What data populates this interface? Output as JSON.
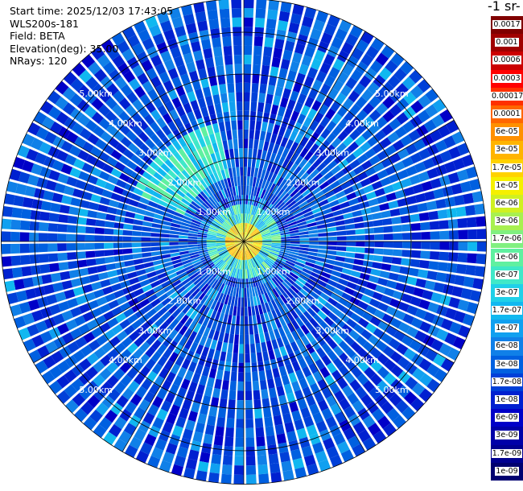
{
  "info": {
    "start_time": "Start time: 2025/12/03 17:43:05",
    "system": "WLS200s-181",
    "field": "Field: BETA",
    "elevation": "Elevation(deg): 35.00",
    "nrays": "NRays: 120"
  },
  "colorbar": {
    "units_label": "-1 sr-",
    "ticks": [
      "0.0017",
      "0.001",
      "0.0006",
      "0.0003",
      "0.00017",
      "0.0001",
      "6e-05",
      "3e-05",
      "1.7e-05",
      "1e-05",
      "6e-06",
      "3e-06",
      "1.7e-06",
      "1e-06",
      "6e-07",
      "3e-07",
      "1.7e-07",
      "1e-07",
      "6e-08",
      "3e-08",
      "1.7e-08",
      "1e-08",
      "6e-09",
      "3e-09",
      "1.7e-09",
      "1e-09"
    ],
    "colors": [
      "#800000",
      "#a00000",
      "#cc0000",
      "#ff0000",
      "#ff3000",
      "#ff6600",
      "#ff9000",
      "#ffb400",
      "#ffd200",
      "#f5f000",
      "#d0f020",
      "#a8f050",
      "#80f080",
      "#60f0a0",
      "#40e8c8",
      "#20d0e8",
      "#10b8f0",
      "#10a0f0",
      "#1080e8",
      "#0060e0",
      "#0040d8",
      "#0020d0",
      "#0000c8",
      "#0000a8",
      "#000090",
      "#000070"
    ]
  },
  "chart_data": {
    "type": "heatmap",
    "projection": "polar PPI",
    "field": "BETA",
    "elevation_deg": 35.0,
    "n_rays": 120,
    "range_rings_km": [
      1,
      2,
      3,
      4,
      5
    ],
    "ring_labels": [
      "1.00km",
      "2.00km",
      "3.00km",
      "4.00km",
      "5.00km"
    ],
    "max_range_km": 5.8,
    "colorscale": "log, 1e-09 to 0.0017",
    "typical_values": {
      "near_center_km_0_0.4": "1e-05 to 6e-05",
      "north_west_patch_km_2_3": "1.7e-07 to 1e-06",
      "background": "6e-09 to 6e-08"
    },
    "grid": true
  }
}
